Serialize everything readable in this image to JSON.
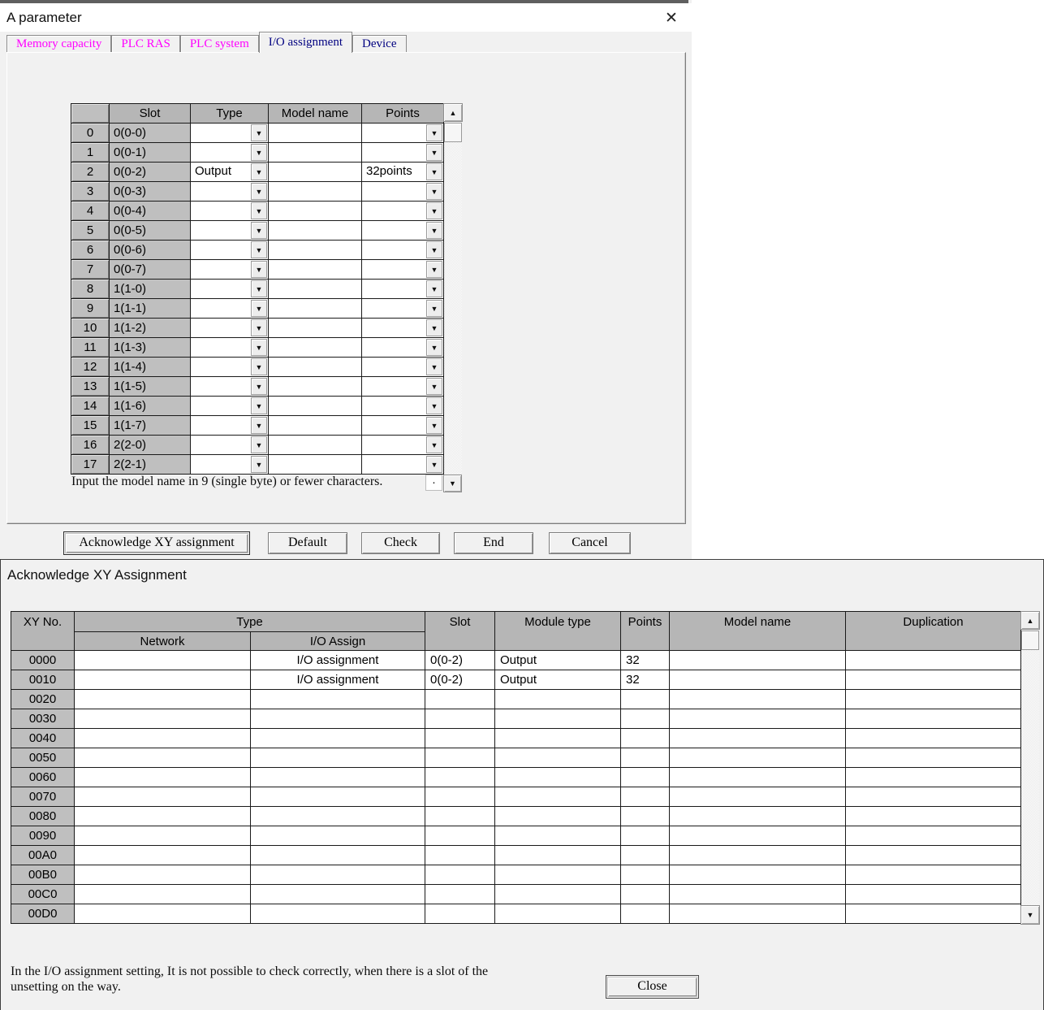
{
  "param_window": {
    "title": "A parameter",
    "close_icon": "✕",
    "tabs": [
      {
        "label": "Memory capacity",
        "color": "#ff00ff",
        "active": false
      },
      {
        "label": "PLC RAS",
        "color": "#ff00ff",
        "active": false
      },
      {
        "label": "PLC system",
        "color": "#ff00ff",
        "active": false
      },
      {
        "label": "I/O assignment",
        "color": "#000080",
        "active": true
      },
      {
        "label": "Device",
        "color": "#000080",
        "active": false
      }
    ],
    "table": {
      "headers": {
        "slot": "Slot",
        "type": "Type",
        "model_name": "Model name",
        "points": "Points"
      },
      "rows": [
        {
          "num": "0",
          "slot": "0(0-0)",
          "type": "",
          "model": "",
          "points": ""
        },
        {
          "num": "1",
          "slot": "0(0-1)",
          "type": "",
          "model": "",
          "points": ""
        },
        {
          "num": "2",
          "slot": "0(0-2)",
          "type": "Output",
          "model": "",
          "points": "32points"
        },
        {
          "num": "3",
          "slot": "0(0-3)",
          "type": "",
          "model": "",
          "points": ""
        },
        {
          "num": "4",
          "slot": "0(0-4)",
          "type": "",
          "model": "",
          "points": ""
        },
        {
          "num": "5",
          "slot": "0(0-5)",
          "type": "",
          "model": "",
          "points": ""
        },
        {
          "num": "6",
          "slot": "0(0-6)",
          "type": "",
          "model": "",
          "points": ""
        },
        {
          "num": "7",
          "slot": "0(0-7)",
          "type": "",
          "model": "",
          "points": ""
        },
        {
          "num": "8",
          "slot": "1(1-0)",
          "type": "",
          "model": "",
          "points": ""
        },
        {
          "num": "9",
          "slot": "1(1-1)",
          "type": "",
          "model": "",
          "points": ""
        },
        {
          "num": "10",
          "slot": "1(1-2)",
          "type": "",
          "model": "",
          "points": ""
        },
        {
          "num": "11",
          "slot": "1(1-3)",
          "type": "",
          "model": "",
          "points": ""
        },
        {
          "num": "12",
          "slot": "1(1-4)",
          "type": "",
          "model": "",
          "points": ""
        },
        {
          "num": "13",
          "slot": "1(1-5)",
          "type": "",
          "model": "",
          "points": ""
        },
        {
          "num": "14",
          "slot": "1(1-6)",
          "type": "",
          "model": "",
          "points": ""
        },
        {
          "num": "15",
          "slot": "1(1-7)",
          "type": "",
          "model": "",
          "points": ""
        },
        {
          "num": "16",
          "slot": "2(2-0)",
          "type": "",
          "model": "",
          "points": ""
        },
        {
          "num": "17",
          "slot": "2(2-1)",
          "type": "",
          "model": "",
          "points": ""
        }
      ]
    },
    "note": "Input the model name in 9 (single byte) or fewer characters.",
    "buttons": [
      {
        "label": "Acknowledge XY assignment",
        "default": true
      },
      {
        "label": "Default",
        "default": false
      },
      {
        "label": "Check",
        "default": false
      },
      {
        "label": "End",
        "default": false
      },
      {
        "label": "Cancel",
        "default": false
      }
    ]
  },
  "ack_window": {
    "title": "Acknowledge XY Assignment",
    "table": {
      "headers": {
        "xy_no": "XY No.",
        "type": "Type",
        "network": "Network",
        "io_assign": "I/O Assign",
        "slot": "Slot",
        "module_type": "Module type",
        "points": "Points",
        "model_name": "Model name",
        "duplication": "Duplication"
      },
      "rows": [
        {
          "xy": "0000",
          "network": "",
          "io_assign": "I/O assignment",
          "slot": "0(0-2)",
          "module_type": "Output",
          "points": "32",
          "model_name": "",
          "duplication": ""
        },
        {
          "xy": "0010",
          "network": "",
          "io_assign": "I/O assignment",
          "slot": "0(0-2)",
          "module_type": "Output",
          "points": "32",
          "model_name": "",
          "duplication": ""
        },
        {
          "xy": "0020",
          "network": "",
          "io_assign": "",
          "slot": "",
          "module_type": "",
          "points": "",
          "model_name": "",
          "duplication": ""
        },
        {
          "xy": "0030",
          "network": "",
          "io_assign": "",
          "slot": "",
          "module_type": "",
          "points": "",
          "model_name": "",
          "duplication": ""
        },
        {
          "xy": "0040",
          "network": "",
          "io_assign": "",
          "slot": "",
          "module_type": "",
          "points": "",
          "model_name": "",
          "duplication": ""
        },
        {
          "xy": "0050",
          "network": "",
          "io_assign": "",
          "slot": "",
          "module_type": "",
          "points": "",
          "model_name": "",
          "duplication": ""
        },
        {
          "xy": "0060",
          "network": "",
          "io_assign": "",
          "slot": "",
          "module_type": "",
          "points": "",
          "model_name": "",
          "duplication": ""
        },
        {
          "xy": "0070",
          "network": "",
          "io_assign": "",
          "slot": "",
          "module_type": "",
          "points": "",
          "model_name": "",
          "duplication": ""
        },
        {
          "xy": "0080",
          "network": "",
          "io_assign": "",
          "slot": "",
          "module_type": "",
          "points": "",
          "model_name": "",
          "duplication": ""
        },
        {
          "xy": "0090",
          "network": "",
          "io_assign": "",
          "slot": "",
          "module_type": "",
          "points": "",
          "model_name": "",
          "duplication": ""
        },
        {
          "xy": "00A0",
          "network": "",
          "io_assign": "",
          "slot": "",
          "module_type": "",
          "points": "",
          "model_name": "",
          "duplication": ""
        },
        {
          "xy": "00B0",
          "network": "",
          "io_assign": "",
          "slot": "",
          "module_type": "",
          "points": "",
          "model_name": "",
          "duplication": ""
        },
        {
          "xy": "00C0",
          "network": "",
          "io_assign": "",
          "slot": "",
          "module_type": "",
          "points": "",
          "model_name": "",
          "duplication": ""
        },
        {
          "xy": "00D0",
          "network": "",
          "io_assign": "",
          "slot": "",
          "module_type": "",
          "points": "",
          "model_name": "",
          "duplication": ""
        }
      ]
    },
    "note_line1": "In the I/O assignment setting, It is not possible to check correctly, when there is a slot of the",
    "note_line2": "unsetting on the way.",
    "close_button": "Close",
    "scroll_dot": "·"
  },
  "colors": {
    "tab_inactive_text": "#ff00ff",
    "tab_active_text": "#000080",
    "header_gray": "#b6b6b6",
    "cell_gray": "#bfbfbf",
    "window_bg": "#f1f1f1"
  }
}
